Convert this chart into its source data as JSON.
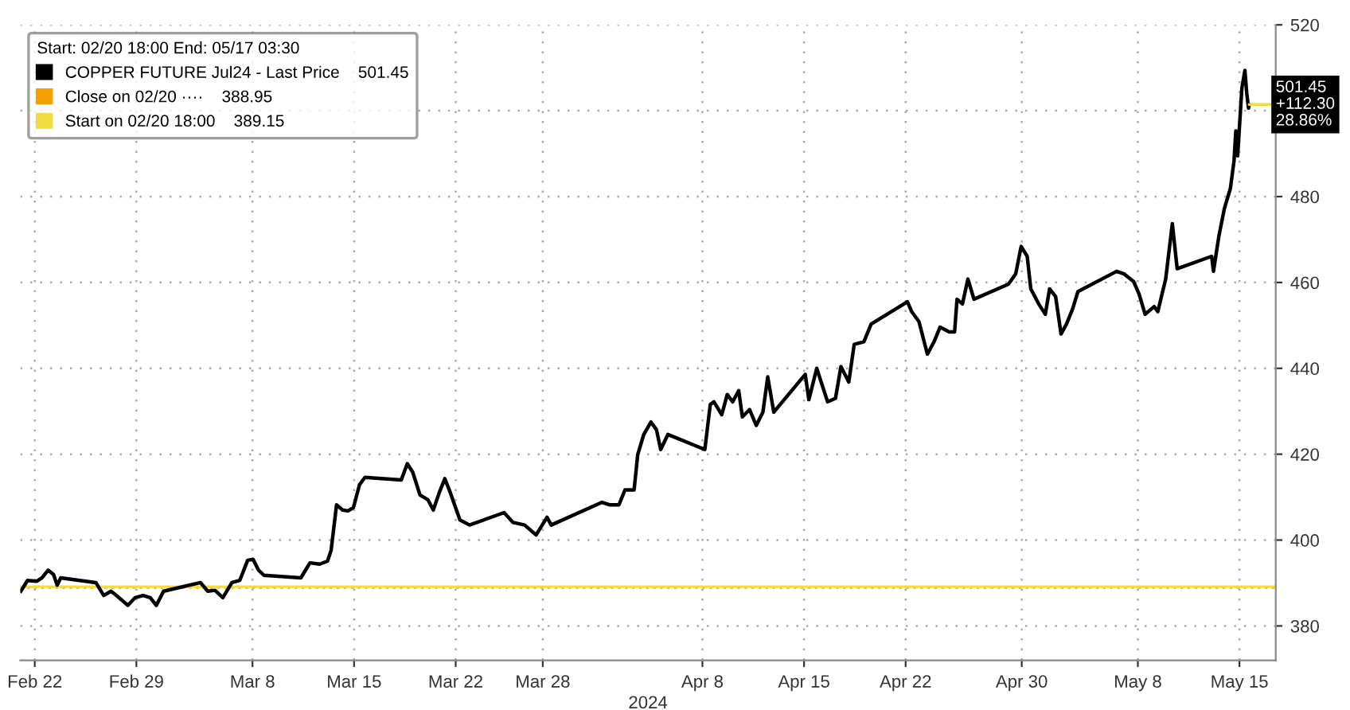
{
  "chart_data": {
    "type": "line",
    "xlabel": "2024",
    "legend_title": "Start: 02/20 18:00 End: 05/17 03:30",
    "legend": "top left",
    "grid": true,
    "line_style": "solid",
    "marker": "none",
    "xlim": [
      "2024-02-21T00:00",
      "2024-05-17T12:00"
    ],
    "ylim": [
      372,
      520
    ],
    "xticks": [
      {
        "value": "2024-02-22",
        "label": "Feb 22"
      },
      {
        "value": "2024-02-29",
        "label": "Feb 29"
      },
      {
        "value": "2024-03-08",
        "label": "Mar 8"
      },
      {
        "value": "2024-03-15",
        "label": "Mar 15"
      },
      {
        "value": "2024-03-22",
        "label": "Mar 22"
      },
      {
        "value": "2024-03-28",
        "label": "Mar 28"
      },
      {
        "value": "2024-04-08",
        "label": "Apr 8"
      },
      {
        "value": "2024-04-15",
        "label": "Apr 15"
      },
      {
        "value": "2024-04-22",
        "label": "Apr 22"
      },
      {
        "value": "2024-04-30",
        "label": "Apr 30"
      },
      {
        "value": "2024-05-08",
        "label": "May 8"
      },
      {
        "value": "2024-05-15",
        "label": "May 15"
      }
    ],
    "yticks": [
      380,
      400,
      420,
      440,
      460,
      480,
      {
        "value": 500,
        "label": null
      },
      520
    ],
    "series": [
      {
        "name": "COPPER FUTURE Jul24 - Last Price    501.45",
        "color": "#000000",
        "x": [
          "2024-02-21T01:00",
          "2024-02-21T12:00",
          "2024-02-22T03:00",
          "2024-02-22T12:00",
          "2024-02-22T22:00",
          "2024-02-23T07:00",
          "2024-02-23T13:00",
          "2024-02-23T19:00",
          "2024-02-26T05:00",
          "2024-02-26T18:00",
          "2024-02-27T06:00",
          "2024-02-27T15:00",
          "2024-02-28T10:00",
          "2024-02-28T22:00",
          "2024-02-29T11:00",
          "2024-02-29T23:00",
          "2024-03-01T09:00",
          "2024-03-01T21:00",
          "2024-03-04T10:00",
          "2024-03-04T22:00",
          "2024-03-05T10:00",
          "2024-03-05T23:00",
          "2024-03-06T14:00",
          "2024-03-07T03:00",
          "2024-03-07T16:00",
          "2024-03-08T01:00",
          "2024-03-08T10:00",
          "2024-03-08T19:00",
          "2024-03-11T08:00",
          "2024-03-11T23:00",
          "2024-03-12T15:00",
          "2024-03-13T04:00",
          "2024-03-13T10:00",
          "2024-03-13T19:00",
          "2024-03-14T05:00",
          "2024-03-14T14:00",
          "2024-03-14T23:00",
          "2024-03-15T09:00",
          "2024-03-15T18:00",
          "2024-03-18T06:00",
          "2024-03-18T16:00",
          "2024-03-19T01:00",
          "2024-03-19T13:00",
          "2024-03-20T02:00",
          "2024-03-20T11:00",
          "2024-03-20T21:00",
          "2024-03-21T06:00",
          "2024-03-21T15:00",
          "2024-03-22T07:00",
          "2024-03-22T23:00",
          "2024-03-25T08:00",
          "2024-03-25T23:00",
          "2024-03-26T18:00",
          "2024-03-27T13:00",
          "2024-03-28T07:00",
          "2024-03-28T14:00",
          "2024-04-01T02:00",
          "2024-04-01T15:00",
          "2024-04-02T06:00",
          "2024-04-02T16:00",
          "2024-04-03T07:00",
          "2024-04-03T13:00",
          "2024-04-03T23:00",
          "2024-04-04T11:00",
          "2024-04-04T20:00",
          "2024-04-05T03:00",
          "2024-04-05T15:00",
          "2024-04-08T04:00",
          "2024-04-08T13:00",
          "2024-04-08T19:00",
          "2024-04-09T08:00",
          "2024-04-09T17:00",
          "2024-04-10T02:00",
          "2024-04-10T12:00",
          "2024-04-10T18:00",
          "2024-04-11T06:00",
          "2024-04-11T17:00",
          "2024-04-12T04:00",
          "2024-04-12T12:00",
          "2024-04-12T22:00",
          "2024-04-15T02:00",
          "2024-04-15T08:00",
          "2024-04-15T21:00",
          "2024-04-16T15:00",
          "2024-04-17T04:00",
          "2024-04-17T13:00",
          "2024-04-18T02:00",
          "2024-04-18T11:00",
          "2024-04-19T03:00",
          "2024-04-19T15:00",
          "2024-04-22T03:00",
          "2024-04-22T10:00",
          "2024-04-22T22:00",
          "2024-04-23T12:00",
          "2024-04-23T23:00",
          "2024-04-24T09:00",
          "2024-04-25T00:00",
          "2024-04-25T09:00",
          "2024-04-25T13:00",
          "2024-04-25T22:00",
          "2024-04-26T07:00",
          "2024-04-26T17:00",
          "2024-04-29T02:00",
          "2024-04-29T14:00",
          "2024-04-29T23:00",
          "2024-04-30T09:00",
          "2024-04-30T15:00",
          "2024-05-01T04:00",
          "2024-05-01T15:00",
          "2024-05-01T22:00",
          "2024-05-02T08:00",
          "2024-05-02T17:00",
          "2024-05-03T02:00",
          "2024-05-03T12:00",
          "2024-05-03T21:00",
          "2024-05-06T13:00",
          "2024-05-07T01:00",
          "2024-05-07T17:00",
          "2024-05-08T02:00",
          "2024-05-08T12:00",
          "2024-05-09T03:00",
          "2024-05-09T09:00",
          "2024-05-09T22:00",
          "2024-05-10T09:00",
          "2024-05-10T17:00",
          "2024-05-13T02:00",
          "2024-05-13T05:00",
          "2024-05-13T14:00",
          "2024-05-13T23:00",
          "2024-05-14T09:00",
          "2024-05-14T15:00",
          "2024-05-14T18:00",
          "2024-05-14T21:00",
          "2024-05-15T04:00",
          "2024-05-15T09:00",
          "2024-05-15T12:00",
          "2024-05-15T15:00",
          "2024-05-15T16:00"
        ],
        "values": [
          388.1,
          390.6,
          390.4,
          391.2,
          393.0,
          392.0,
          389.5,
          391.2,
          390.1,
          387.1,
          388.1,
          387.1,
          384.8,
          386.6,
          387.1,
          386.6,
          384.8,
          388.1,
          390.1,
          388.1,
          388.3,
          386.6,
          390.1,
          390.6,
          395.3,
          395.5,
          393.0,
          391.8,
          391.2,
          394.7,
          394.4,
          395.1,
          397.6,
          408.2,
          407.0,
          406.8,
          407.6,
          412.9,
          414.6,
          414.0,
          417.8,
          415.8,
          410.5,
          409.4,
          407.0,
          411.1,
          414.3,
          411.1,
          404.7,
          403.5,
          406.4,
          404.1,
          403.5,
          401.2,
          405.3,
          403.5,
          408.8,
          408.2,
          408.2,
          411.7,
          411.7,
          419.9,
          424.6,
          427.5,
          425.7,
          421.1,
          424.6,
          421.1,
          431.6,
          432.2,
          429.2,
          433.9,
          432.2,
          434.8,
          428.7,
          430.4,
          426.7,
          429.8,
          438.0,
          429.8,
          438.6,
          432.7,
          440.0,
          432.2,
          433.0,
          440.4,
          436.8,
          445.6,
          446.2,
          450.3,
          455.5,
          453.2,
          450.9,
          443.3,
          446.2,
          449.6,
          448.5,
          448.5,
          456.1,
          455.0,
          460.8,
          456.1,
          459.6,
          462.0,
          468.4,
          466.1,
          458.5,
          455.0,
          452.6,
          458.5,
          456.7,
          448.0,
          450.3,
          453.8,
          457.9,
          462.6,
          462.0,
          460.2,
          457.3,
          452.6,
          454.4,
          453.2,
          460.8,
          473.7,
          463.2,
          466.1,
          462.6,
          470.8,
          477.2,
          481.9,
          488.3,
          495.3,
          489.5,
          505.3,
          509.4,
          504.1,
          500.6,
          501.45
        ]
      }
    ],
    "ref_lines": [
      {
        "axis": "y",
        "value": 388.95,
        "label": "Close on 02/20 ····    388.95",
        "color": "#f5a000",
        "line_style": "dotted"
      },
      {
        "axis": "y",
        "value": 389.15,
        "label": "Start on 02/20 18:00    389.15",
        "color": "#f0dc3c",
        "line_style": "solid"
      }
    ],
    "annotations": [
      {
        "text": "501.45\n+112.30\n28.86%",
        "x": "2024-05-15T16:00",
        "y": 501.45
      }
    ]
  }
}
